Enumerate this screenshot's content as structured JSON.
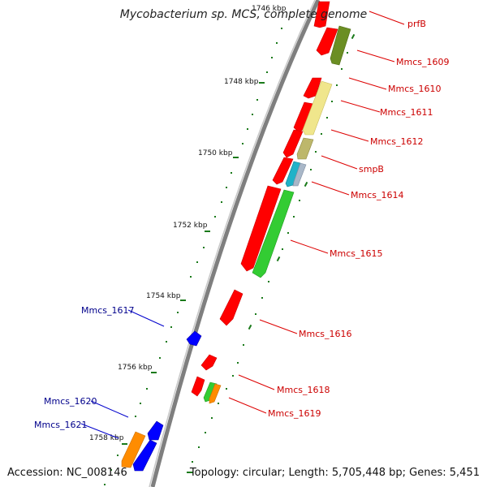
{
  "title": "Mycobacterium sp. MCS, complete genome",
  "footer": {
    "accession": "Accession: NC_008146",
    "topology": "Topology: circular; Length: 5,705,448 bp; Genes: 5,451"
  },
  "colors": {
    "backbone": "#808080",
    "forward_strand": "#ff0000",
    "reverse_strand_label": "#00008b",
    "forward_label": "#cc0000",
    "tick": "#1a7a1a",
    "blue_gene": "#0000ff",
    "orange_gene": "#ff8c00",
    "green_gene": "#33cc33",
    "olive_gene": "#6b8e23",
    "khaki_gene": "#f0e68c",
    "khaki_dark_gene": "#bdb76b",
    "cyan_gene": "#20b2c8",
    "steel_gene": "#a9b7c8"
  },
  "kbp_labels": [
    "1746 kbp",
    "1748 kbp",
    "1750 kbp",
    "1752 kbp",
    "1754 kbp",
    "1756 kbp",
    "1758 kbp"
  ],
  "gene_labels_right": [
    "prfB",
    "Mmcs_1609",
    "Mmcs_1610",
    "Mmcs_1611",
    "Mmcs_1612",
    "smpB",
    "Mmcs_1614",
    "Mmcs_1615",
    "Mmcs_1616",
    "Mmcs_1618",
    "Mmcs_1619"
  ],
  "gene_labels_left": [
    "Mmcs_1617",
    "Mmcs_1620",
    "Mmcs_1621"
  ]
}
